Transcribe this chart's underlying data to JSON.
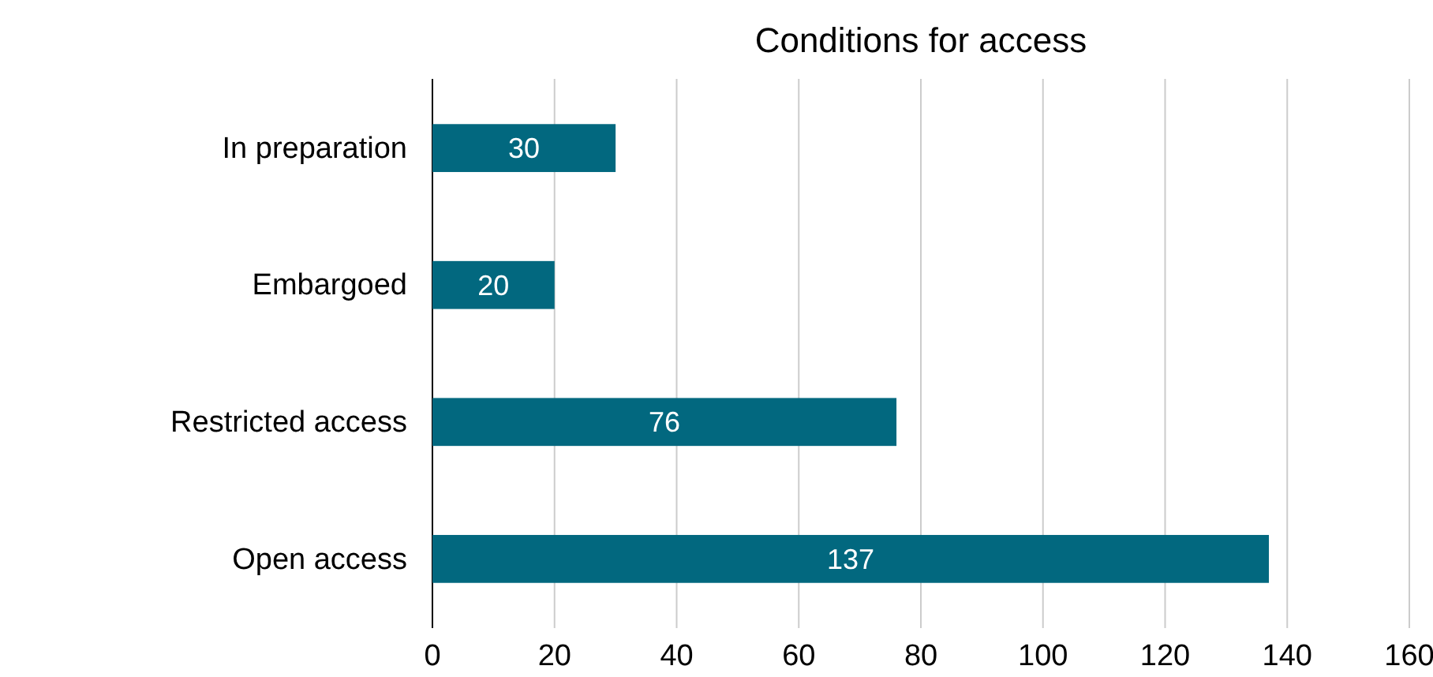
{
  "chart_data": {
    "type": "bar",
    "orientation": "horizontal",
    "title": "Conditions for access",
    "categories": [
      "In preparation",
      "Embargoed",
      "Restricted access",
      "Open access"
    ],
    "values": [
      30,
      20,
      76,
      137
    ],
    "color": "#02687f",
    "xlim": [
      0,
      160
    ],
    "xticks": [
      0,
      20,
      40,
      60,
      80,
      100,
      120,
      140,
      160
    ],
    "grid": "x",
    "data_labels": true
  }
}
